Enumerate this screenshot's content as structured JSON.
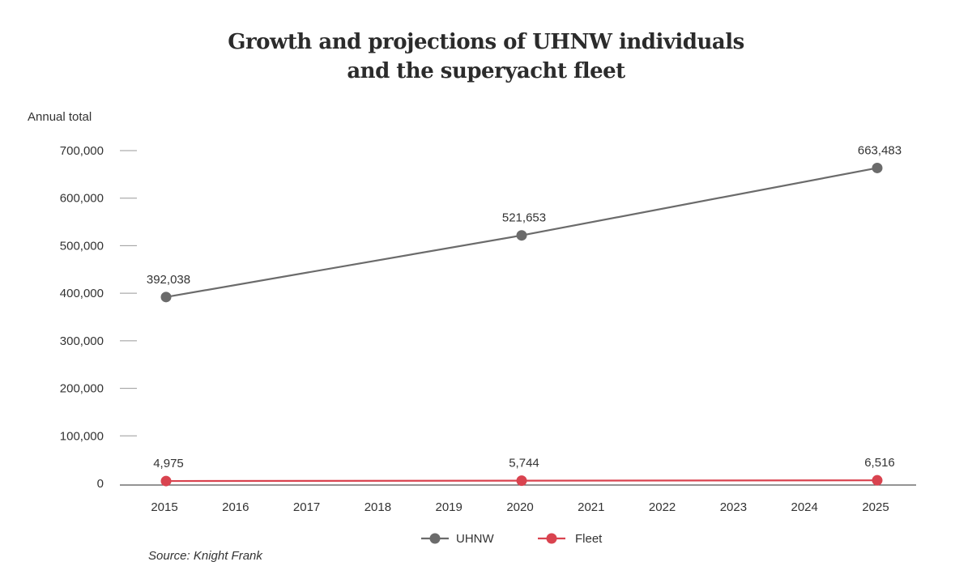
{
  "chart_data": {
    "type": "line",
    "title_lines": [
      "Growth and projections of UHNW individuals",
      "and the superyacht fleet"
    ],
    "ylabel": "Annual total",
    "xlabel": "",
    "x": [
      2015,
      2016,
      2017,
      2018,
      2019,
      2020,
      2021,
      2022,
      2023,
      2024,
      2025
    ],
    "ylim": [
      0,
      700000
    ],
    "yticks": [
      0,
      100000,
      200000,
      300000,
      400000,
      500000,
      600000,
      700000
    ],
    "ytick_labels": [
      "0",
      "100,000",
      "200,000",
      "300,000",
      "400,000",
      "500,000",
      "600,000",
      "700,000"
    ],
    "series": [
      {
        "name": "UHNW",
        "color": "#6b6b6b",
        "points": [
          {
            "x": 2015,
            "y": 392038,
            "label": "392,038"
          },
          {
            "x": 2020,
            "y": 521653,
            "label": "521,653"
          },
          {
            "x": 2025,
            "y": 663483,
            "label": "663,483"
          }
        ]
      },
      {
        "name": "Fleet",
        "color": "#d9434f",
        "points": [
          {
            "x": 2015,
            "y": 4975,
            "label": "4,975"
          },
          {
            "x": 2020,
            "y": 5744,
            "label": "5,744"
          },
          {
            "x": 2025,
            "y": 6516,
            "label": "6,516"
          }
        ]
      }
    ],
    "legend_position": "bottom-center",
    "grid": false,
    "source": "Source: Knight Frank"
  }
}
